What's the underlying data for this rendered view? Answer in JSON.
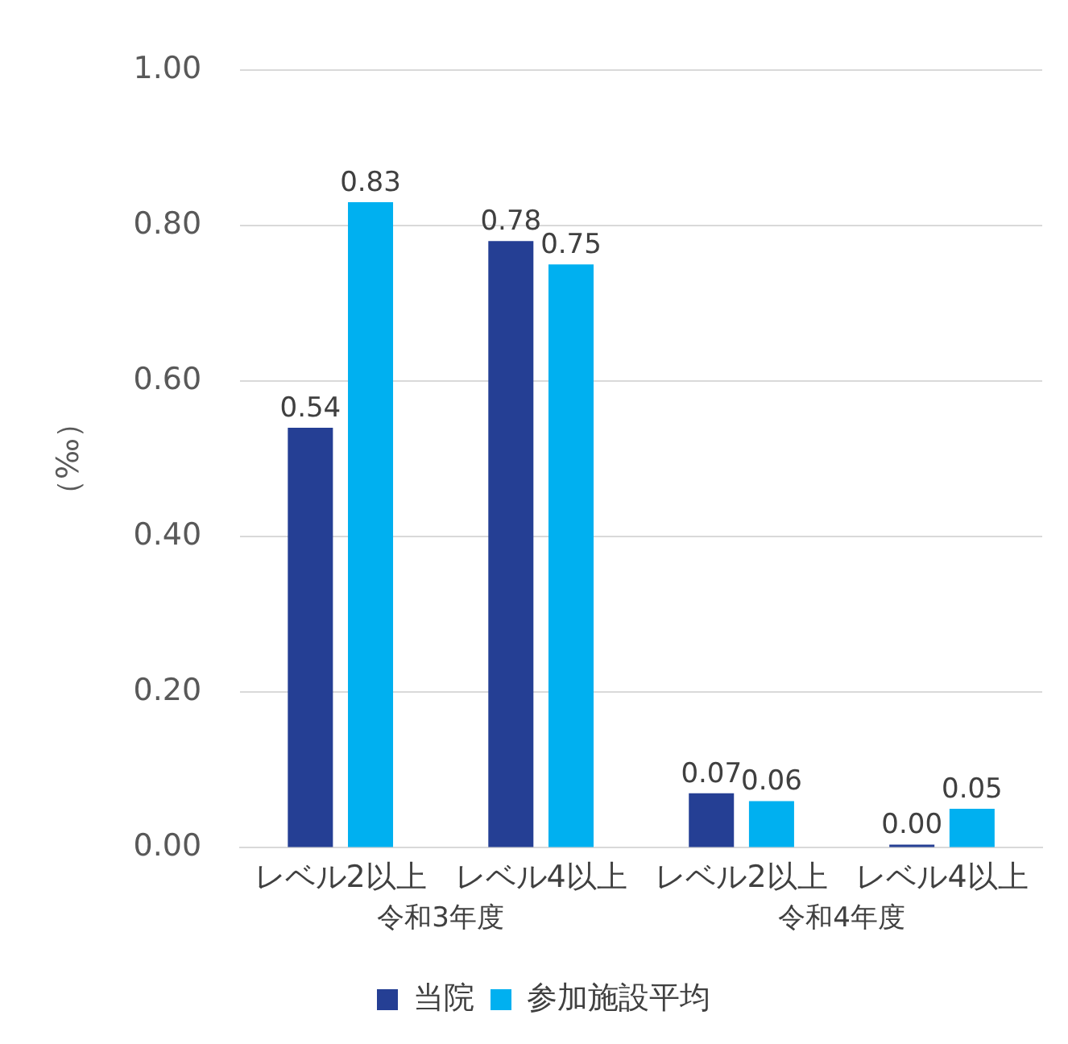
{
  "chart_data": {
    "type": "bar",
    "ylabel": "（‰）",
    "categories": [
      "レベル2以上",
      "レベル4以上",
      "レベル2以上",
      "レベル4以上"
    ],
    "annotations": [
      "令和3年度",
      "令和4年度"
    ],
    "series": [
      {
        "name": "当院",
        "color": "#253f94",
        "values": [
          0.54,
          0.78,
          0.07,
          0.0
        ],
        "value_labels": [
          "0.54",
          "0.78",
          "0.07",
          "0.00"
        ]
      },
      {
        "name": "参加施設平均",
        "color": "#00b0f0",
        "values": [
          0.83,
          0.75,
          0.06,
          0.05
        ],
        "value_labels": [
          "0.83",
          "0.75",
          "0.06",
          "0.05"
        ]
      }
    ],
    "ylim": [
      0,
      1
    ],
    "yticks": [
      {
        "value": 0,
        "label": "0.00"
      },
      {
        "value": 0.2,
        "label": "0.20"
      },
      {
        "value": 0.4,
        "label": "0.40"
      },
      {
        "value": 0.6,
        "label": "0.60"
      },
      {
        "value": 0.8,
        "label": "0.80"
      },
      {
        "value": 1,
        "label": "1.00"
      }
    ],
    "grid": "y",
    "legend": "bottom"
  }
}
